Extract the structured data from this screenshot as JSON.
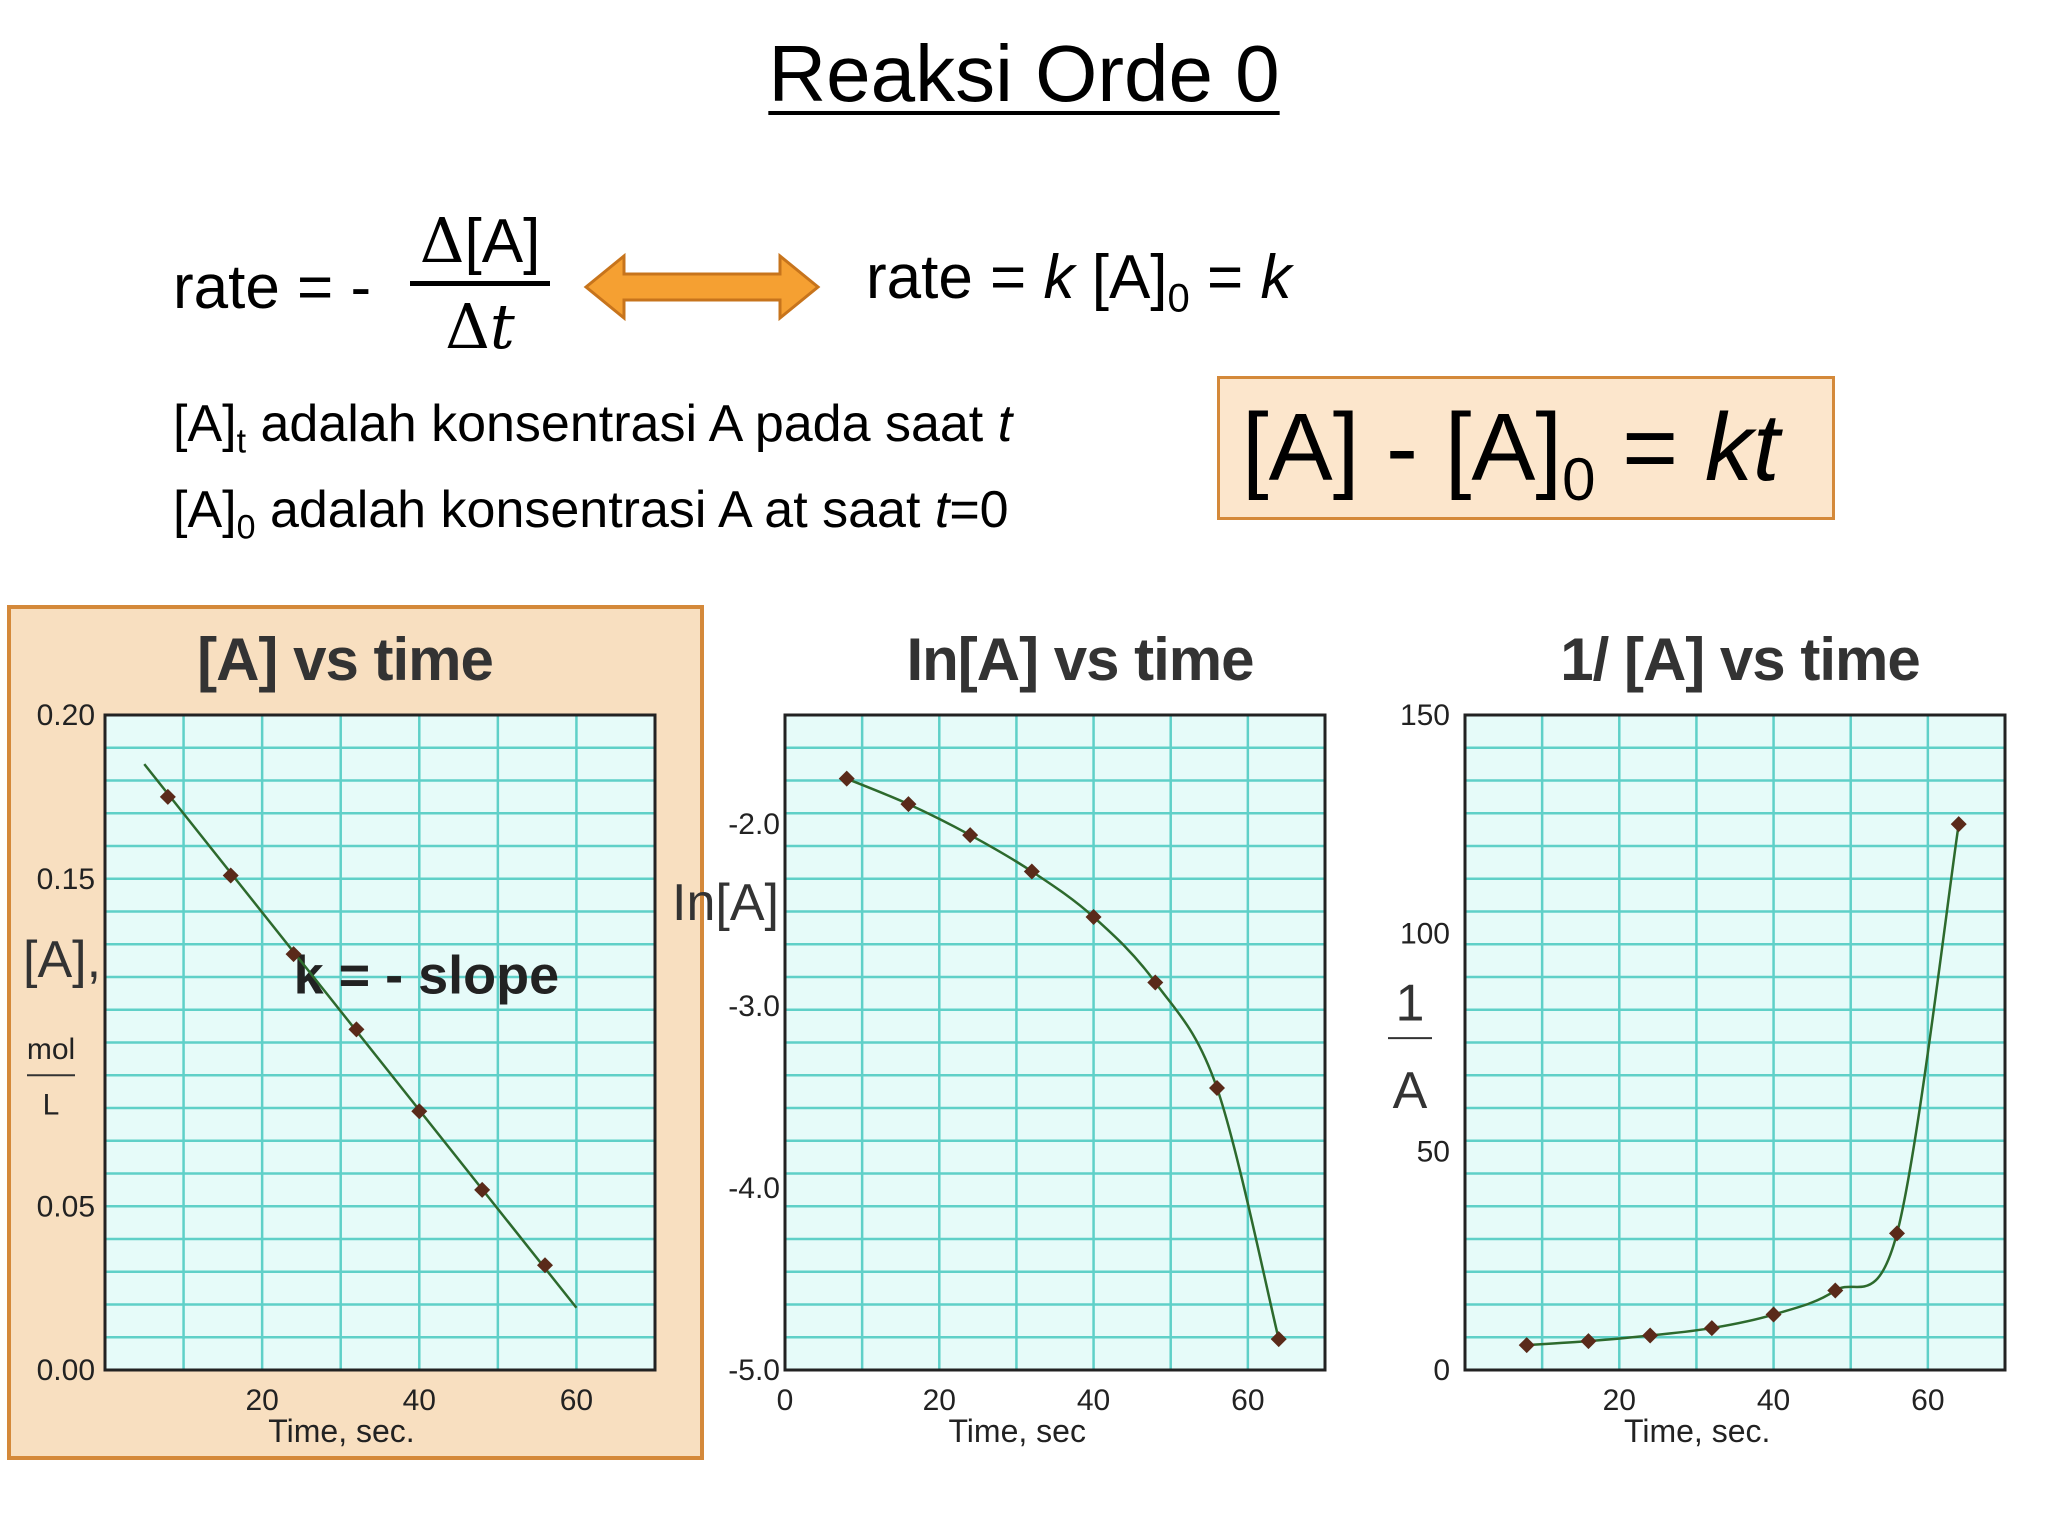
{
  "slide": {
    "title": "Reaksi Orde 0",
    "eq_rate_prefix": "rate = -",
    "eq_num": "[A]",
    "eq_den": "t",
    "eq_delta": "Δ",
    "eq2_a": "rate = ",
    "eq2_k": "k",
    "eq2_b": " [A]",
    "eq2_sub": "0",
    "eq2_c": " = ",
    "eq2_k2": "k",
    "note1_a": "[A]",
    "note1_sub": "t",
    "note1_b": " adalah konsentrasi A pada saat ",
    "note1_t": "t",
    "note2_a": "[A]",
    "note2_sub": "0",
    "note2_b": " adalah konsentrasi A at saat ",
    "note2_t": "t",
    "note2_c": "=0",
    "box_a": "[A] - [A]",
    "box_sub": "0",
    "box_b": " = ",
    "box_kt": "kt"
  },
  "colors": {
    "arrow_fill": "#f5a032",
    "arrow_stroke": "#c7741c",
    "grid": "#5fd0c8",
    "plot_bg": "#e6fbf9",
    "curve": "#2d6a2d",
    "marker": "#5a2a1a",
    "highlight_bg": "#f8dfc0",
    "highlight_border": "#d4893a"
  },
  "chart_data": [
    {
      "type": "line",
      "title": "[A]  vs time",
      "xlabel": "Time, sec.",
      "ylabel": "[A],",
      "ylabel_units_num": "mol",
      "ylabel_units_den": "L",
      "annotation": "k = - slope",
      "xlim": [
        0,
        70
      ],
      "ylim": [
        0,
        0.2
      ],
      "xticks": [
        "20",
        "40",
        "60"
      ],
      "yticks": [
        "0.00",
        "0.05",
        "0.15",
        "0.20"
      ],
      "ytick_values": [
        0,
        0.05,
        0.15,
        0.2
      ],
      "xtick_values": [
        20,
        40,
        60
      ],
      "series": [
        {
          "x": [
            8,
            16,
            24,
            32,
            40,
            48,
            56
          ],
          "y": [
            0.175,
            0.151,
            0.127,
            0.104,
            0.079,
            0.055,
            0.032
          ]
        }
      ],
      "line_x": [
        5,
        60
      ],
      "line_y": [
        0.185,
        0.019
      ],
      "grid": true
    },
    {
      "type": "line",
      "title": "In[A] vs time",
      "xlabel": "Time, sec",
      "ylabel": "In[A]",
      "xlim": [
        0,
        70
      ],
      "ylim": [
        -5.0,
        -1.4
      ],
      "xticks": [
        "0",
        "20",
        "40",
        "60"
      ],
      "xtick_values": [
        0,
        20,
        40,
        60
      ],
      "yticks": [
        "-2.0",
        "-3.0",
        "-4.0",
        "-5.0"
      ],
      "ytick_values": [
        -2.0,
        -3.0,
        -4.0,
        -5.0
      ],
      "series": [
        {
          "x": [
            8,
            16,
            24,
            32,
            40,
            48,
            56,
            64
          ],
          "y": [
            -1.75,
            -1.89,
            -2.06,
            -2.26,
            -2.51,
            -2.87,
            -3.45,
            -4.83
          ]
        }
      ],
      "grid": true
    },
    {
      "type": "line",
      "title": "1/ [A] vs time",
      "xlabel": "Time, sec.",
      "ylabel_num": "1",
      "ylabel_den": "A",
      "xlim": [
        0,
        70
      ],
      "ylim": [
        0,
        150
      ],
      "xticks": [
        "20",
        "40",
        "60"
      ],
      "xtick_values": [
        20,
        40,
        60
      ],
      "yticks": [
        "0",
        "50",
        "100",
        "150"
      ],
      "ytick_values": [
        0,
        50,
        100,
        150
      ],
      "series": [
        {
          "x": [
            8,
            16,
            24,
            32,
            40,
            48,
            56,
            64
          ],
          "y": [
            5.7,
            6.6,
            7.9,
            9.6,
            12.7,
            18.2,
            31.3,
            125
          ]
        }
      ],
      "grid": true
    }
  ]
}
